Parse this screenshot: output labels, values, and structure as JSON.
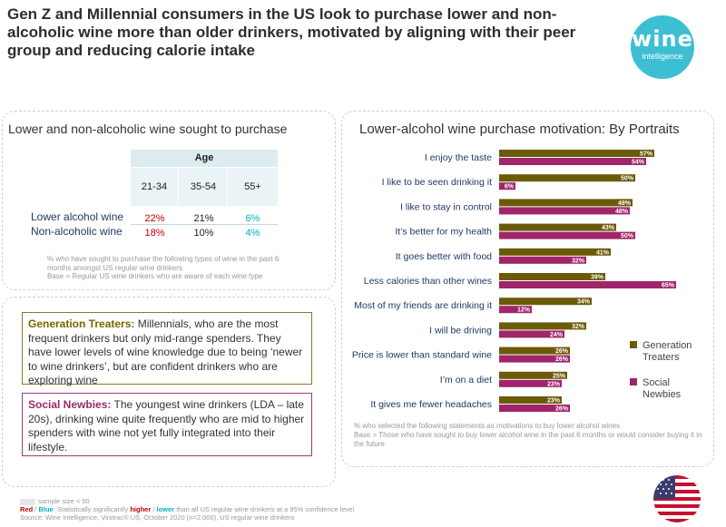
{
  "headline": "Gen Z and Millennial consumers in the US look to purchase lower and non-alcoholic wine more than older drinkers, motivated by aligning with their peer group and reducing calorie intake",
  "logo": {
    "line1": "wine",
    "line2": "intelligence"
  },
  "left_panel": {
    "title": "Lower and non-alcoholic wine sought to purchase",
    "age_header": "Age",
    "age_groups": [
      "21-34",
      "35-54",
      "55+"
    ],
    "rows": [
      {
        "label": "Lower alcohol wine",
        "values": [
          "22%",
          "21%",
          "6%"
        ],
        "colors": [
          "red",
          "plain",
          "blue"
        ]
      },
      {
        "label": "Non-alcoholic wine",
        "values": [
          "18%",
          "10%",
          "4%"
        ],
        "colors": [
          "red",
          "plain",
          "blue"
        ]
      }
    ],
    "note1": "% who have sought to purchase the following types of wine in the past 6 months amongst US regular wine drinkers",
    "note2": "Base = Regular US wine drinkers who are aware of each wine type"
  },
  "portraits": {
    "gt_name": "Generation Treaters:",
    "gt_text": " Millennials, who are the most frequent drinkers but only mid-range spenders. They have lower levels of wine knowledge due to being ‘newer to wine drinkers’, but are confident drinkers who are exploring wine",
    "sn_name": "Social Newbies:",
    "sn_text": " The youngest wine drinkers (LDA – late 20s), drinking wine quite frequently who are mid to higher spenders with wine not yet fully integrated into their lifestyle."
  },
  "footer": {
    "line1": ": sample size < 50",
    "red_word": "Red",
    "slash1": " / ",
    "blue_word": "Blue",
    "line2_a": ": Statistically significantly ",
    "higher": "higher",
    "slash2": " / ",
    "lower": "lower",
    "line2_b": " than all US regular wine drinkers at a 95% confidence level",
    "line3": "Source: Wine Intelligence, Vinitrac® US, October 2020 (n=2,000), US regular wine drinkers"
  },
  "chart_data": {
    "type": "bar",
    "orientation": "horizontal",
    "title": "Lower-alcohol wine purchase motivation: By Portraits",
    "categories": [
      "I enjoy the taste",
      "I like to be seen drinking it",
      "I like to stay in control",
      "It’s better for my health",
      "It goes better with food",
      "Less calories than other wines",
      "Most of my friends are drinking it",
      "I will be driving",
      "Price is lower than standard wine",
      "I’m on a diet",
      "It gives me fewer headaches"
    ],
    "series": [
      {
        "name": "Generation Treaters",
        "color": "#6b5a08",
        "values": [
          57,
          50,
          49,
          43,
          41,
          39,
          34,
          32,
          26,
          25,
          23
        ]
      },
      {
        "name": "Social Newbies",
        "color": "#a0256a",
        "values": [
          54,
          6,
          48,
          50,
          32,
          65,
          12,
          24,
          26,
          23,
          26
        ]
      }
    ],
    "value_suffix": "%",
    "xlim": [
      0,
      65
    ],
    "legend_position": "right",
    "note1": "% who selected the following statements as motivations to buy lower alcohol wines",
    "note2": "Base = Those who have sought to buy lower alcohol wine in the past 6 months or would consider buying it in the future"
  }
}
